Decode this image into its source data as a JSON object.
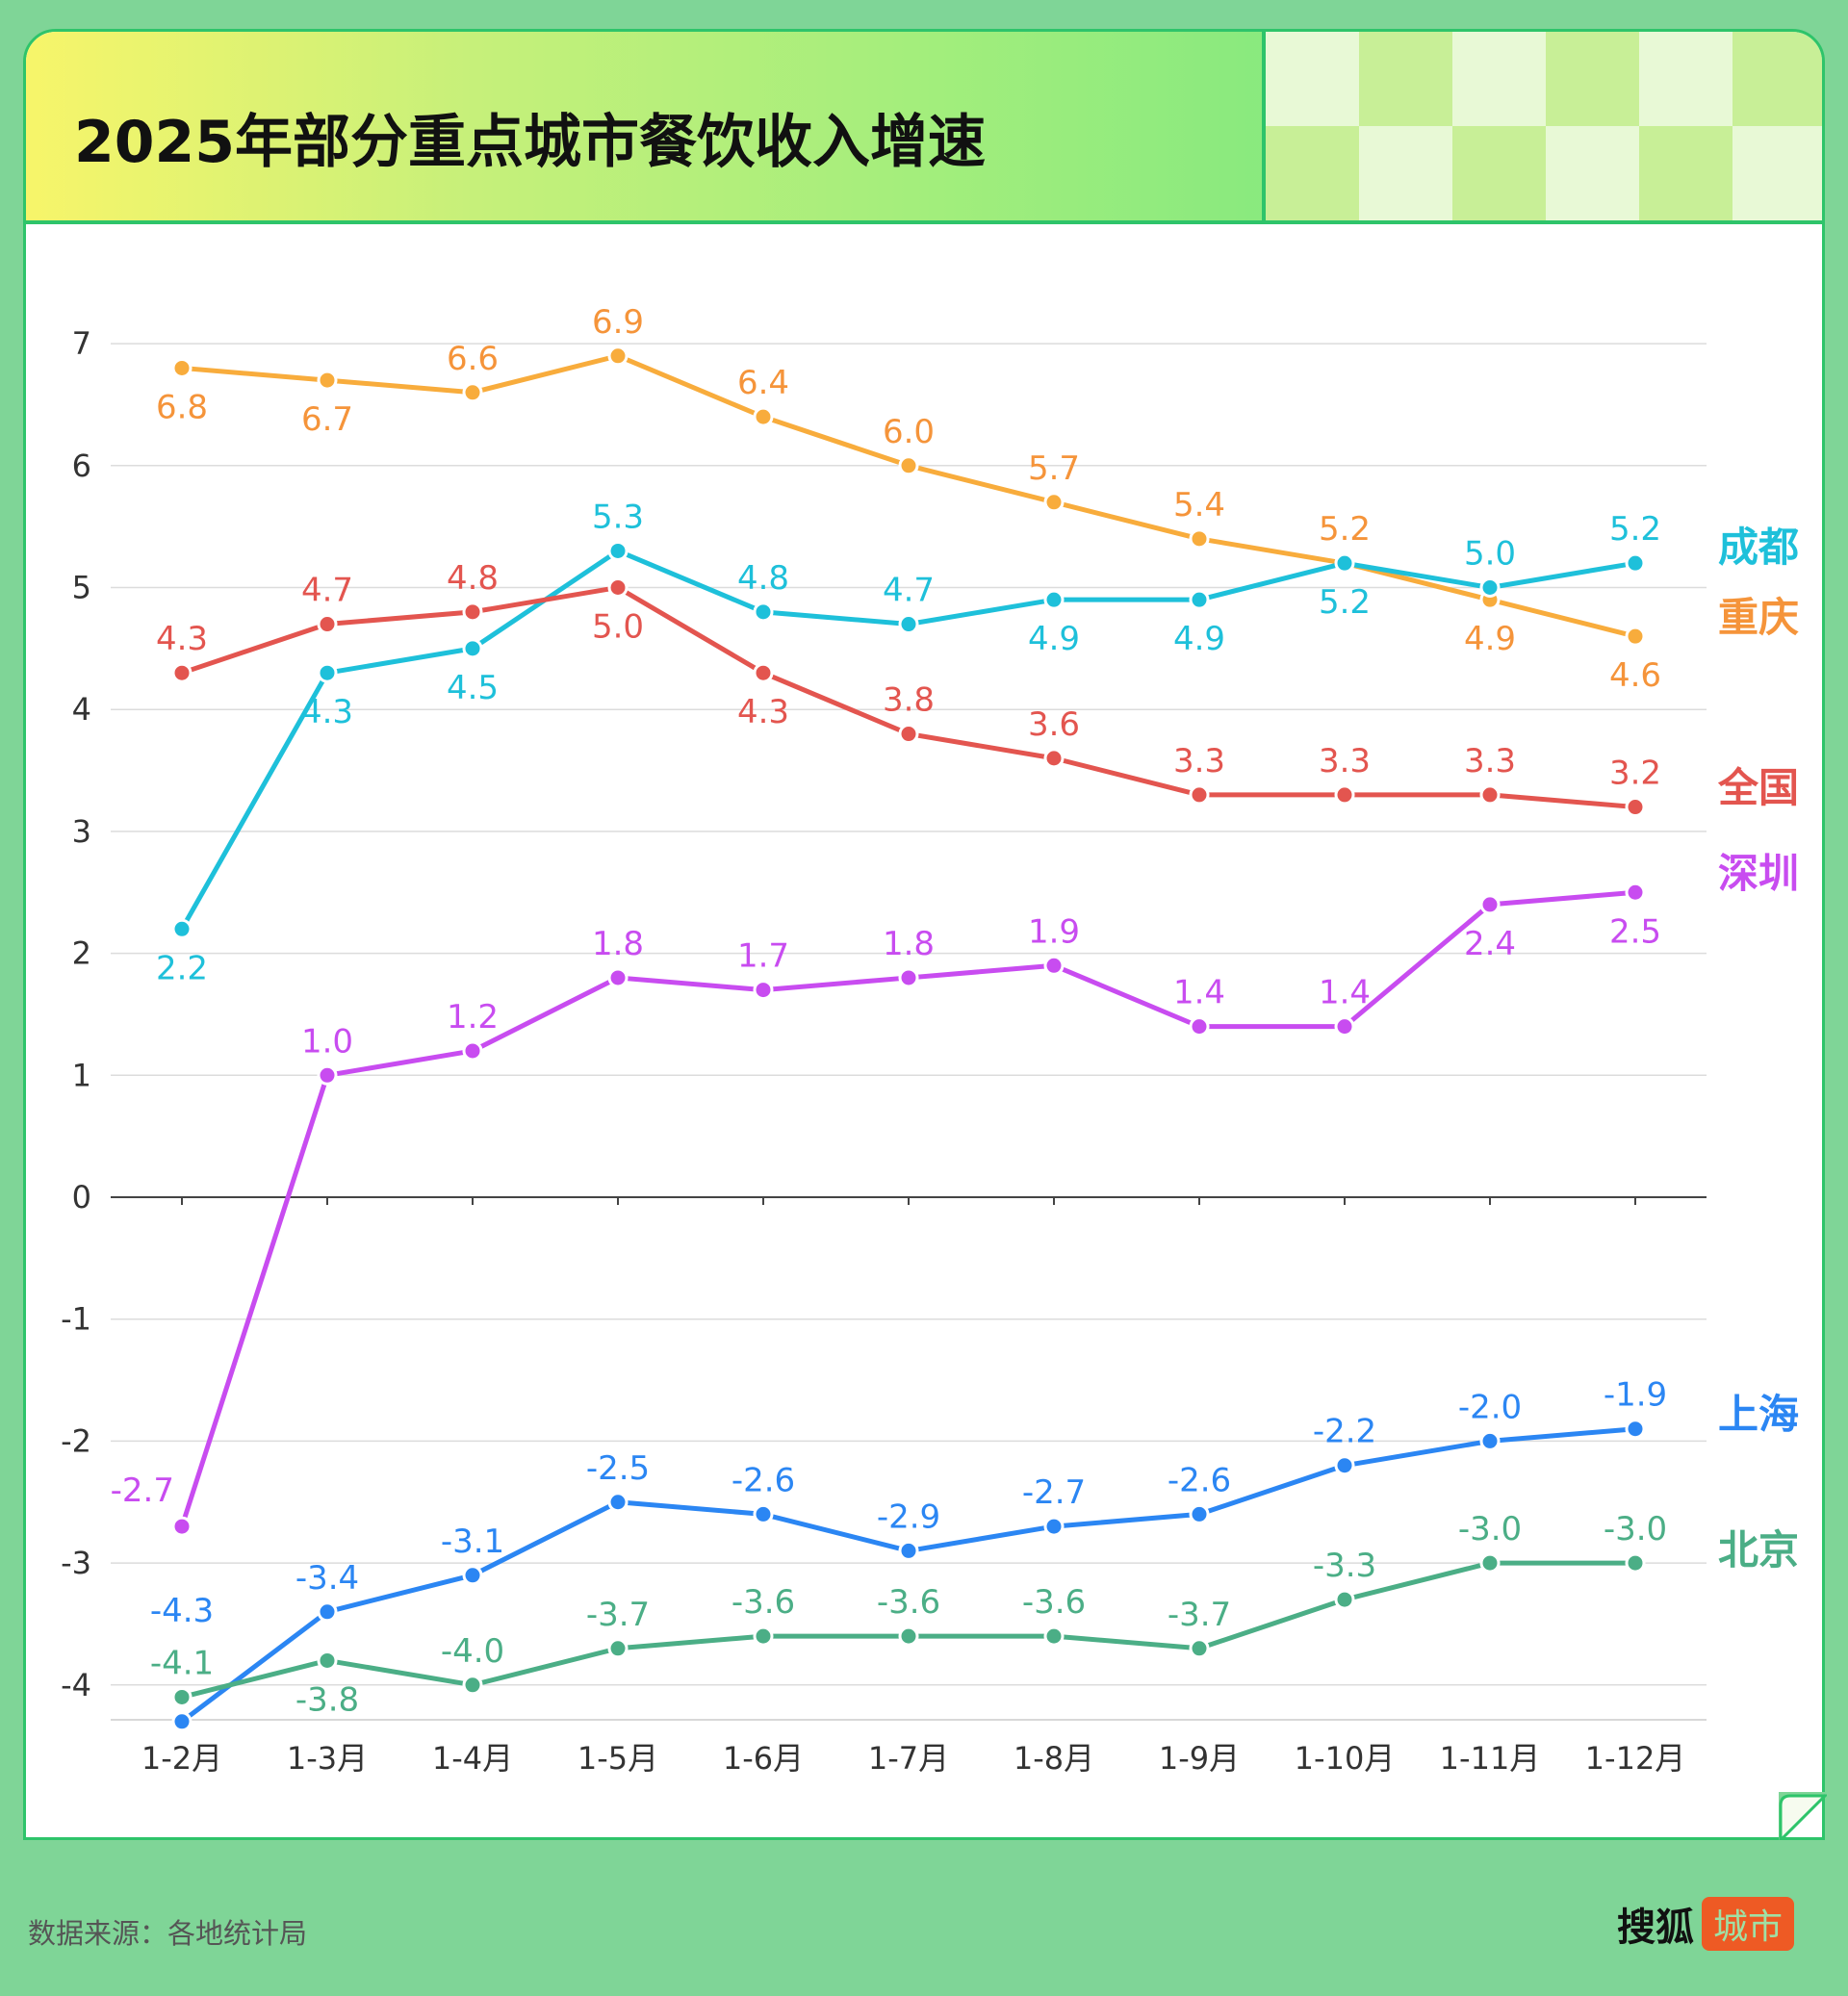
{
  "title": "2025年部分重点城市餐饮收入增速",
  "source": "数据来源：各地统计局",
  "logo": {
    "text": "搜狐",
    "badge": "城市"
  },
  "chart_data": {
    "type": "line",
    "title": "2025年部分重点城市餐饮收入增速",
    "xlabel": "",
    "ylabel": "",
    "categories": [
      "1-2月",
      "1-3月",
      "1-4月",
      "1-5月",
      "1-6月",
      "1-7月",
      "1-8月",
      "1-9月",
      "1-10月",
      "1-11月",
      "1-12月"
    ],
    "ylim": [
      -4.3,
      7.2
    ],
    "yticks": [
      "7",
      "6",
      "5",
      "4",
      "3",
      "2",
      "1",
      "0",
      "-1",
      "-2",
      "-3",
      "-4"
    ],
    "grid": true,
    "legend": "right, labels at line ends",
    "series": [
      {
        "name": "重庆",
        "color": "#f8ac3c",
        "label_color": "#f5943a",
        "values": [
          6.8,
          6.7,
          6.6,
          6.9,
          6.4,
          6.0,
          5.7,
          5.4,
          5.2,
          4.9,
          4.6
        ],
        "labels": [
          "6.8",
          "6.7",
          "6.6",
          "6.9",
          "6.4",
          "6.0",
          "5.7",
          "5.4",
          "5.2",
          "4.9",
          "4.6"
        ],
        "label_pos": [
          "below",
          "below",
          "above",
          "above",
          "above",
          "above",
          "above",
          "above",
          "above",
          "below",
          "below"
        ]
      },
      {
        "name": "成都",
        "color": "#1ec0da",
        "label_color": "#1ec0da",
        "values": [
          2.2,
          4.3,
          4.5,
          5.3,
          4.8,
          4.7,
          4.9,
          4.9,
          5.2,
          5.0,
          5.2
        ],
        "labels": [
          "2.2",
          "4.3",
          "4.5",
          "5.3",
          "4.8",
          "4.7",
          "4.9",
          "4.9",
          "5.2",
          "5.0",
          "5.2"
        ],
        "label_pos": [
          "below",
          "below",
          "below",
          "above",
          "above",
          "above",
          "below",
          "below",
          "below",
          "above",
          "above"
        ]
      },
      {
        "name": "全国",
        "color": "#e3554f",
        "label_color": "#e3554f",
        "values": [
          4.3,
          4.7,
          4.8,
          5.0,
          4.3,
          3.8,
          3.6,
          3.3,
          3.3,
          3.3,
          3.2
        ],
        "labels": [
          "4.3",
          "4.7",
          "4.8",
          "5.0",
          "4.3",
          "3.8",
          "3.6",
          "3.3",
          "3.3",
          "3.3",
          "3.2"
        ],
        "label_pos": [
          "above",
          "above",
          "above",
          "below",
          "below",
          "above",
          "above",
          "above",
          "above",
          "above",
          "above"
        ]
      },
      {
        "name": "深圳",
        "color": "#c84cf0",
        "label_color": "#c84cf0",
        "values": [
          -2.7,
          1.0,
          1.2,
          1.8,
          1.7,
          1.8,
          1.9,
          1.4,
          1.4,
          2.4,
          2.5
        ],
        "labels": [
          "-2.7",
          "1.0",
          "1.2",
          "1.8",
          "1.7",
          "1.8",
          "1.9",
          "1.4",
          "1.4",
          "2.4",
          "2.5"
        ],
        "label_pos": [
          "left",
          "above",
          "above",
          "above",
          "above",
          "above",
          "above",
          "above",
          "above",
          "below",
          "below"
        ]
      },
      {
        "name": "上海",
        "color": "#2b86f3",
        "label_color": "#2b86f3",
        "values": [
          -4.3,
          -3.4,
          -3.1,
          -2.5,
          -2.6,
          -2.9,
          -2.7,
          -2.6,
          -2.2,
          -2.0,
          -1.9
        ],
        "labels": [
          "-4.3",
          "-3.4",
          "-3.1",
          "-2.5",
          "-2.6",
          "-2.9",
          "-2.7",
          "-2.6",
          "-2.2",
          "-2.0",
          "-1.9"
        ],
        "label_pos": [
          "far-above",
          "above",
          "above",
          "above",
          "above",
          "above",
          "above",
          "above",
          "above",
          "above",
          "above"
        ]
      },
      {
        "name": "北京",
        "color": "#4bae86",
        "label_color": "#4bae86",
        "values": [
          -4.1,
          -3.8,
          -4.0,
          -3.7,
          -3.6,
          -3.6,
          -3.6,
          -3.7,
          -3.3,
          -3.0,
          -3.0
        ],
        "labels": [
          "-4.1",
          "-3.8",
          "-4.0",
          "-3.7",
          "-3.6",
          "-3.6",
          "-3.6",
          "-3.7",
          "-3.3",
          "-3.0",
          "-3.0"
        ],
        "label_pos": [
          "above",
          "below",
          "above",
          "above",
          "above",
          "above",
          "above",
          "above",
          "above",
          "above",
          "above"
        ]
      }
    ]
  }
}
